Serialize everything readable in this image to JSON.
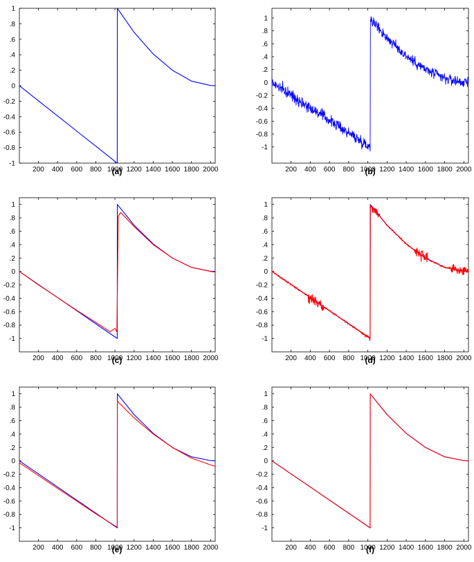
{
  "figure": {
    "colors": {
      "original": "#0000ff",
      "reconstruction": "#ff0000",
      "axes": "#000000",
      "background": "#ffffff"
    }
  },
  "chart_data": [
    {
      "label": "(a)",
      "type": "line",
      "title": "",
      "xlabel": "",
      "ylabel": "",
      "xlim": [
        1,
        2048
      ],
      "ylim": [
        -1,
        1
      ],
      "grid": false,
      "x_ticks": [
        200,
        400,
        600,
        800,
        1000,
        1200,
        1400,
        1600,
        1800,
        2000
      ],
      "y_ticks": [
        -1,
        -0.8,
        -0.6,
        -0.4,
        -0.2,
        0,
        0.2,
        0.4,
        0.6,
        0.8,
        1
      ],
      "series": [
        {
          "color": "#0000ff",
          "kind": "clean",
          "x": [
            1,
            200,
            400,
            600,
            800,
            1000,
            1024,
            1025,
            1200,
            1400,
            1600,
            1800,
            2000,
            2048
          ],
          "y": [
            0,
            -0.195,
            -0.39,
            -0.586,
            -0.781,
            -0.977,
            -1,
            1,
            0.69,
            0.41,
            0.2,
            0.06,
            0.003,
            0
          ]
        }
      ]
    },
    {
      "label": "(b)",
      "type": "line",
      "title": "",
      "xlabel": "",
      "ylabel": "",
      "xlim": [
        1,
        2048
      ],
      "ylim": [
        -1.25,
        1.15
      ],
      "grid": false,
      "x_ticks": [
        200,
        400,
        600,
        800,
        1000,
        1200,
        1400,
        1600,
        1800,
        2000
      ],
      "y_ticks": [
        -1,
        -0.8,
        -0.6,
        -0.4,
        -0.2,
        0,
        0.2,
        0.4,
        0.6,
        0.8,
        1
      ],
      "series": [
        {
          "color": "#0000ff",
          "kind": "noisy",
          "x": [
            1,
            200,
            400,
            600,
            800,
            1000,
            1024,
            1025,
            1200,
            1400,
            1600,
            1800,
            2000,
            2048
          ],
          "y": [
            0,
            -0.195,
            -0.39,
            -0.586,
            -0.781,
            -0.977,
            -1,
            1,
            0.69,
            0.41,
            0.2,
            0.06,
            0.003,
            0
          ]
        }
      ]
    },
    {
      "label": "(c)",
      "type": "line",
      "title": "",
      "xlabel": "",
      "ylabel": "",
      "xlim": [
        1,
        2048
      ],
      "ylim": [
        -1.2,
        1.1
      ],
      "grid": false,
      "x_ticks": [
        200,
        400,
        600,
        800,
        1000,
        1200,
        1400,
        1600,
        1800,
        2000
      ],
      "y_ticks": [
        -1,
        -0.8,
        -0.6,
        -0.4,
        -0.2,
        0,
        0.2,
        0.4,
        0.6,
        0.8,
        1
      ],
      "series": [
        {
          "color": "#0000ff",
          "kind": "clean",
          "x": [
            1,
            200,
            400,
            600,
            800,
            1000,
            1024,
            1025,
            1200,
            1400,
            1600,
            1800,
            2000,
            2048
          ],
          "y": [
            0,
            -0.195,
            -0.39,
            -0.586,
            -0.781,
            -0.977,
            -1,
            1,
            0.69,
            0.41,
            0.2,
            0.06,
            0.003,
            0
          ]
        },
        {
          "color": "#ff0000",
          "kind": "smooth",
          "x": [
            1,
            200,
            400,
            600,
            800,
            950,
            1000,
            1020,
            1035,
            1060,
            1200,
            1400,
            1600,
            1800,
            2000,
            2048
          ],
          "y": [
            0,
            -0.2,
            -0.39,
            -0.58,
            -0.76,
            -0.9,
            -0.85,
            -0.9,
            0.82,
            0.88,
            0.67,
            0.4,
            0.2,
            0.06,
            0,
            -0.01
          ]
        }
      ]
    },
    {
      "label": "(d)",
      "type": "line",
      "title": "",
      "xlabel": "",
      "ylabel": "",
      "xlim": [
        1,
        2048
      ],
      "ylim": [
        -1.2,
        1.1
      ],
      "grid": false,
      "x_ticks": [
        200,
        400,
        600,
        800,
        1000,
        1200,
        1400,
        1600,
        1800,
        2000
      ],
      "y_ticks": [
        -1,
        -0.8,
        -0.6,
        -0.4,
        -0.2,
        0,
        0.2,
        0.4,
        0.6,
        0.8,
        1
      ],
      "series": [
        {
          "color": "#0000ff",
          "kind": "clean",
          "x": [
            1,
            200,
            400,
            600,
            800,
            1000,
            1024,
            1025,
            1200,
            1400,
            1600,
            1800,
            2000,
            2048
          ],
          "y": [
            0,
            -0.195,
            -0.39,
            -0.586,
            -0.781,
            -0.977,
            -1,
            1,
            0.69,
            0.41,
            0.2,
            0.06,
            0.003,
            0
          ]
        },
        {
          "color": "#ff0000",
          "kind": "burst",
          "x": [
            1,
            200,
            400,
            600,
            800,
            1000,
            1024,
            1025,
            1200,
            1400,
            1600,
            1800,
            2000,
            2048
          ],
          "y": [
            0,
            -0.195,
            -0.39,
            -0.586,
            -0.781,
            -0.977,
            -1,
            1,
            0.69,
            0.41,
            0.2,
            0.06,
            0.003,
            0
          ]
        }
      ]
    },
    {
      "label": "(e)",
      "type": "line",
      "title": "",
      "xlabel": "",
      "ylabel": "",
      "xlim": [
        1,
        2048
      ],
      "ylim": [
        -1.2,
        1.1
      ],
      "grid": false,
      "x_ticks": [
        200,
        400,
        600,
        800,
        1000,
        1200,
        1400,
        1600,
        1800,
        2000
      ],
      "y_ticks": [
        -1,
        -0.8,
        -0.6,
        -0.4,
        -0.2,
        0,
        0.2,
        0.4,
        0.6,
        0.8,
        1
      ],
      "series": [
        {
          "color": "#0000ff",
          "kind": "clean",
          "x": [
            1,
            200,
            400,
            600,
            800,
            1000,
            1024,
            1025,
            1200,
            1400,
            1600,
            1800,
            2000,
            2048
          ],
          "y": [
            0,
            -0.195,
            -0.39,
            -0.586,
            -0.781,
            -0.977,
            -1,
            1,
            0.69,
            0.41,
            0.2,
            0.06,
            0.003,
            0
          ]
        },
        {
          "color": "#ff0000",
          "kind": "smooth",
          "x": [
            1,
            200,
            400,
            600,
            800,
            1000,
            1024,
            1025,
            1200,
            1400,
            1600,
            1800,
            2000,
            2048
          ],
          "y": [
            -0.03,
            -0.22,
            -0.41,
            -0.6,
            -0.79,
            -0.97,
            -0.99,
            0.89,
            0.64,
            0.4,
            0.2,
            0.04,
            -0.06,
            -0.08
          ]
        }
      ]
    },
    {
      "label": "(f)",
      "type": "line",
      "title": "",
      "xlabel": "",
      "ylabel": "",
      "xlim": [
        1,
        2048
      ],
      "ylim": [
        -1.2,
        1.1
      ],
      "grid": false,
      "x_ticks": [
        200,
        400,
        600,
        800,
        1000,
        1200,
        1400,
        1600,
        1800,
        2000
      ],
      "y_ticks": [
        -1,
        -0.8,
        -0.6,
        -0.4,
        -0.2,
        0,
        0.2,
        0.4,
        0.6,
        0.8,
        1
      ],
      "series": [
        {
          "color": "#0000ff",
          "kind": "clean",
          "x": [
            1,
            200,
            400,
            600,
            800,
            1000,
            1024,
            1025,
            1200,
            1400,
            1600,
            1800,
            2000,
            2048
          ],
          "y": [
            0,
            -0.195,
            -0.39,
            -0.586,
            -0.781,
            -0.977,
            -1,
            1,
            0.69,
            0.41,
            0.2,
            0.06,
            0.003,
            0
          ]
        },
        {
          "color": "#ff0000",
          "kind": "smooth",
          "x": [
            1,
            200,
            400,
            600,
            800,
            1000,
            1024,
            1025,
            1200,
            1400,
            1600,
            1800,
            2000,
            2048
          ],
          "y": [
            0,
            -0.195,
            -0.39,
            -0.586,
            -0.781,
            -0.977,
            -1,
            1,
            0.69,
            0.41,
            0.2,
            0.06,
            0.003,
            0
          ]
        }
      ]
    }
  ]
}
